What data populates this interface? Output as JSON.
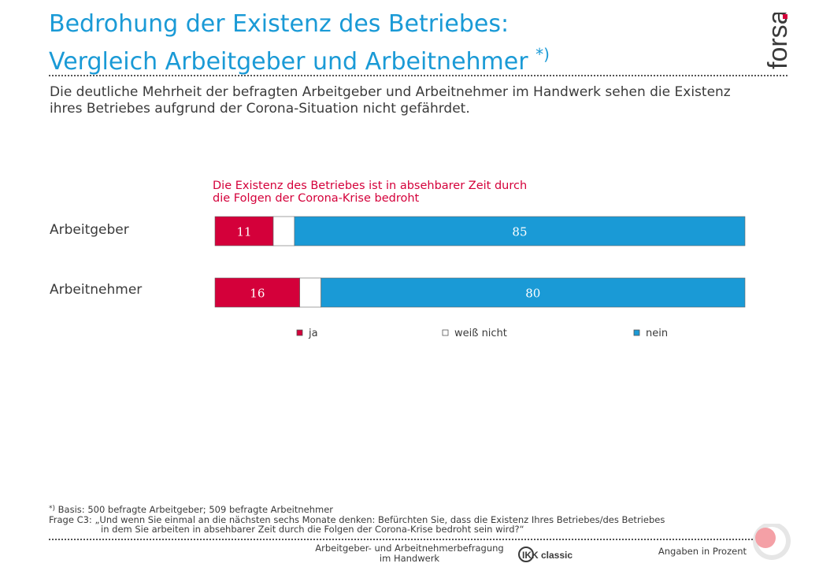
{
  "header": {
    "title_line1": "Bedrohung der Existenz des Betriebes:",
    "title_line2": "Vergleich Arbeitgeber und Arbeitnehmer",
    "title_marker": "*)",
    "logo_text": "forsa."
  },
  "subtitle": "Die deutliche Mehrheit der befragten Arbeitgeber und Arbeitnehmer im Handwerk sehen die Existenz ihres Betriebes aufgrund der Corona-Situation nicht gefährdet.",
  "chart_data": {
    "type": "bar",
    "orientation": "horizontal",
    "stacked": true,
    "title": "Die Existenz des Betriebes ist in absehbarer Zeit durch die Folgen der Corona-Krise bedroht",
    "title_line1": "Die Existenz des Betriebes ist in absehbarer Zeit durch",
    "title_line2": "die Folgen der Corona-Krise bedroht",
    "categories": [
      "Arbeitgeber",
      "Arbeitnehmer"
    ],
    "series": [
      {
        "name": "ja",
        "values": [
          11,
          16
        ],
        "color": "#d4003a",
        "show_labels": true
      },
      {
        "name": "weiß nicht",
        "values": [
          4,
          4
        ],
        "color": "#ffffff",
        "show_labels": false
      },
      {
        "name": "nein",
        "values": [
          85,
          80
        ],
        "color": "#1a9ad6",
        "show_labels": true
      }
    ],
    "xlim": [
      0,
      100
    ],
    "grid": false,
    "legend_position": "bottom"
  },
  "footnote": {
    "marker": "*)",
    "basis": "Basis: 500 befragte Arbeitgeber; 509 befragte Arbeitnehmer",
    "question_line1": "Frage C3: „Und wenn Sie einmal an die nächsten sechs Monate denken: Befürchten Sie, dass die Existenz Ihres Betriebes/des Betriebes",
    "question_line2": "in dem Sie arbeiten in absehbarer Zeit durch die Folgen der Corona-Krise bedroht sein wird?“"
  },
  "footer": {
    "study_line1": "Arbeitgeber- und Arbeitnehmerbefragung",
    "study_line2": "im Handwerk",
    "partner_logo": "IKK classic",
    "units_note": "Angaben in Prozent"
  },
  "colors": {
    "accent_blue": "#1a9ad6",
    "accent_red": "#d4003a",
    "text": "#3a3a3a"
  }
}
